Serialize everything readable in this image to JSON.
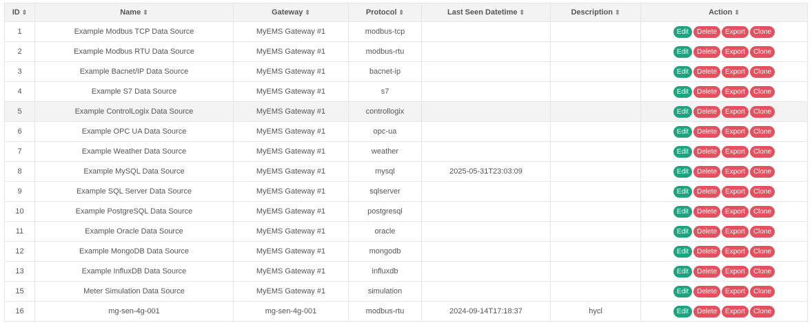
{
  "columns": [
    "ID",
    "Name",
    "Gateway",
    "Protocol",
    "Last Seen Datetime",
    "Description",
    "Action"
  ],
  "sort_icon": "⇕",
  "actions": {
    "edit": "Edit",
    "delete": "Delete",
    "export": "Export",
    "clone": "Clone"
  },
  "colors": {
    "edit": "#1fa37f",
    "danger": "#e5505e",
    "header_bg": "#f3f3f3"
  },
  "hovered_row_id": "5",
  "rows": [
    {
      "id": "1",
      "name": "Example Modbus TCP Data Source",
      "gateway": "MyEMS Gateway #1",
      "protocol": "modbus-tcp",
      "last_seen": "",
      "description": ""
    },
    {
      "id": "2",
      "name": "Example Modbus RTU Data Source",
      "gateway": "MyEMS Gateway #1",
      "protocol": "modbus-rtu",
      "last_seen": "",
      "description": ""
    },
    {
      "id": "3",
      "name": "Example Bacnet/IP Data Source",
      "gateway": "MyEMS Gateway #1",
      "protocol": "bacnet-ip",
      "last_seen": "",
      "description": ""
    },
    {
      "id": "4",
      "name": "Example S7 Data Source",
      "gateway": "MyEMS Gateway #1",
      "protocol": "s7",
      "last_seen": "",
      "description": ""
    },
    {
      "id": "5",
      "name": "Example ControlLogix Data Source",
      "gateway": "MyEMS Gateway #1",
      "protocol": "controllogix",
      "last_seen": "",
      "description": ""
    },
    {
      "id": "6",
      "name": "Example OPC UA Data Source",
      "gateway": "MyEMS Gateway #1",
      "protocol": "opc-ua",
      "last_seen": "",
      "description": ""
    },
    {
      "id": "7",
      "name": "Example Weather Data Source",
      "gateway": "MyEMS Gateway #1",
      "protocol": "weather",
      "last_seen": "",
      "description": ""
    },
    {
      "id": "8",
      "name": "Example MySQL Data Source",
      "gateway": "MyEMS Gateway #1",
      "protocol": "mysql",
      "last_seen": "2025-05-31T23:03:09",
      "description": ""
    },
    {
      "id": "9",
      "name": "Example SQL Server Data Source",
      "gateway": "MyEMS Gateway #1",
      "protocol": "sqlserver",
      "last_seen": "",
      "description": ""
    },
    {
      "id": "10",
      "name": "Example PostgreSQL Data Source",
      "gateway": "MyEMS Gateway #1",
      "protocol": "postgresql",
      "last_seen": "",
      "description": ""
    },
    {
      "id": "11",
      "name": "Example Oracle Data Source",
      "gateway": "MyEMS Gateway #1",
      "protocol": "oracle",
      "last_seen": "",
      "description": ""
    },
    {
      "id": "12",
      "name": "Example MongoDB Data Source",
      "gateway": "MyEMS Gateway #1",
      "protocol": "mongodb",
      "last_seen": "",
      "description": ""
    },
    {
      "id": "13",
      "name": "Example InfluxDB Data Source",
      "gateway": "MyEMS Gateway #1",
      "protocol": "influxdb",
      "last_seen": "",
      "description": ""
    },
    {
      "id": "15",
      "name": "Meter Simulation Data Source",
      "gateway": "MyEMS Gateway #1",
      "protocol": "simulation",
      "last_seen": "",
      "description": ""
    },
    {
      "id": "16",
      "name": "mg-sen-4g-001",
      "gateway": "mg-sen-4g-001",
      "protocol": "modbus-rtu",
      "last_seen": "2024-09-14T17:18:37",
      "description": "hycl"
    }
  ]
}
